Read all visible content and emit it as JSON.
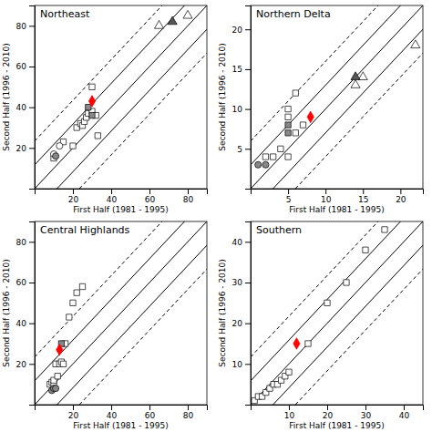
{
  "chart_data": [
    {
      "type": "scatter",
      "title": "Northeast",
      "xlabel": "First Half (1981 - 1995)",
      "ylabel": "Second Half (1996 - 2010)",
      "xlim": [
        0,
        90
      ],
      "ylim": [
        0,
        90
      ],
      "xticks": [
        20,
        40,
        60,
        80
      ],
      "yticks": [
        20,
        40,
        60,
        80
      ],
      "series": [
        {
          "type": "line",
          "line_style": "dashed",
          "color": "#000000",
          "x": [
            0,
            66.6
          ],
          "values": [
            23.4,
            90
          ]
        },
        {
          "type": "line",
          "line_style": "dashed",
          "color": "#000000",
          "x": [
            23.4,
            90
          ],
          "values": [
            0,
            66.6
          ]
        },
        {
          "type": "line",
          "line_style": "solid",
          "color": "#000000",
          "x": [
            0,
            78.3
          ],
          "values": [
            11.7,
            90
          ]
        },
        {
          "type": "line",
          "line_style": "solid",
          "color": "#000000",
          "x": [
            11.7,
            90
          ],
          "values": [
            0,
            78.3
          ]
        },
        {
          "type": "line",
          "line_style": "solid",
          "color": "#000000",
          "x": [
            0,
            90
          ],
          "values": [
            0,
            90
          ]
        },
        {
          "type": "scatter",
          "marker": "square",
          "color": "#ffffff",
          "x": [
            10,
            15,
            20,
            22,
            24,
            25,
            26,
            27,
            28,
            30,
            30,
            32,
            33
          ],
          "values": [
            15,
            23,
            21,
            30,
            32,
            31,
            33,
            35,
            37,
            38,
            50,
            36,
            26
          ]
        },
        {
          "type": "scatter",
          "marker": "square",
          "color": "#888888",
          "x": [
            28,
            30
          ],
          "values": [
            40,
            36
          ]
        },
        {
          "type": "scatter",
          "marker": "circle",
          "color": "#ffffff",
          "x": [
            10,
            13
          ],
          "values": [
            17,
            21
          ]
        },
        {
          "type": "scatter",
          "marker": "circle",
          "color": "#888888",
          "x": [
            11
          ],
          "values": [
            16
          ]
        },
        {
          "type": "scatter",
          "marker": "triangle",
          "color": "#ffffff",
          "x": [
            65,
            80
          ],
          "values": [
            80,
            85
          ]
        },
        {
          "type": "scatter",
          "marker": "triangle",
          "color": "#555555",
          "x": [
            72
          ],
          "values": [
            82
          ]
        },
        {
          "type": "scatter",
          "marker": "diamond",
          "color": "#ff0000",
          "x": [
            30
          ],
          "values": [
            43
          ]
        }
      ]
    },
    {
      "type": "scatter",
      "title": "Northern Delta",
      "xlabel": "First Half (1981 - 1995)",
      "ylabel": "Second Half (1996 - 2010)",
      "xlim": [
        0,
        23
      ],
      "ylim": [
        0,
        23
      ],
      "xticks": [
        5,
        10,
        15,
        20
      ],
      "yticks": [
        5,
        10,
        15,
        20
      ],
      "series": [
        {
          "type": "line",
          "line_style": "dashed",
          "color": "#000000",
          "x": [
            0,
            17.02
          ],
          "values": [
            5.98,
            23
          ]
        },
        {
          "type": "line",
          "line_style": "dashed",
          "color": "#000000",
          "x": [
            5.98,
            23
          ],
          "values": [
            0,
            17.02
          ]
        },
        {
          "type": "line",
          "line_style": "solid",
          "color": "#000000",
          "x": [
            0,
            20.01
          ],
          "values": [
            2.99,
            23
          ]
        },
        {
          "type": "line",
          "line_style": "solid",
          "color": "#000000",
          "x": [
            2.99,
            23
          ],
          "values": [
            0,
            20.01
          ]
        },
        {
          "type": "line",
          "line_style": "solid",
          "color": "#000000",
          "x": [
            0,
            23
          ],
          "values": [
            0,
            23
          ]
        },
        {
          "type": "scatter",
          "marker": "square",
          "color": "#ffffff",
          "x": [
            2,
            3,
            4,
            5,
            5,
            5,
            6,
            6,
            7
          ],
          "values": [
            4,
            4,
            5,
            4,
            9,
            10,
            7,
            12,
            8
          ]
        },
        {
          "type": "scatter",
          "marker": "square",
          "color": "#888888",
          "x": [
            5,
            5
          ],
          "values": [
            7,
            8
          ]
        },
        {
          "type": "scatter",
          "marker": "circle",
          "color": "#888888",
          "x": [
            1,
            2
          ],
          "values": [
            3,
            3
          ]
        },
        {
          "type": "scatter",
          "marker": "triangle",
          "color": "#ffffff",
          "x": [
            14,
            15,
            22
          ],
          "values": [
            13,
            14,
            18
          ]
        },
        {
          "type": "scatter",
          "marker": "triangle",
          "color": "#555555",
          "x": [
            14
          ],
          "values": [
            14
          ]
        },
        {
          "type": "scatter",
          "marker": "diamond",
          "color": "#ff0000",
          "x": [
            8
          ],
          "values": [
            9
          ]
        }
      ]
    },
    {
      "type": "scatter",
      "title": "Central Highlands",
      "xlabel": "First Half (1981 - 1995)",
      "ylabel": "Second Half (1996 - 2010)",
      "xlim": [
        0,
        90
      ],
      "ylim": [
        0,
        90
      ],
      "xticks": [
        20,
        40,
        60,
        80
      ],
      "yticks": [
        20,
        40,
        60,
        80
      ],
      "series": [
        {
          "type": "line",
          "line_style": "dashed",
          "color": "#000000",
          "x": [
            0,
            66.6
          ],
          "values": [
            23.4,
            90
          ]
        },
        {
          "type": "line",
          "line_style": "dashed",
          "color": "#000000",
          "x": [
            23.4,
            90
          ],
          "values": [
            0,
            66.6
          ]
        },
        {
          "type": "line",
          "line_style": "solid",
          "color": "#000000",
          "x": [
            0,
            78.3
          ],
          "values": [
            11.7,
            90
          ]
        },
        {
          "type": "line",
          "line_style": "solid",
          "color": "#000000",
          "x": [
            11.7,
            90
          ],
          "values": [
            0,
            78.3
          ]
        },
        {
          "type": "line",
          "line_style": "solid",
          "color": "#000000",
          "x": [
            0,
            90
          ],
          "values": [
            0,
            90
          ]
        },
        {
          "type": "scatter",
          "marker": "square",
          "color": "#ffffff",
          "x": [
            8,
            9,
            10,
            10,
            11,
            12,
            13,
            14,
            15,
            16,
            18,
            20,
            22,
            25
          ],
          "values": [
            10,
            11,
            10,
            12,
            20,
            14,
            20,
            21,
            20,
            30,
            43,
            50,
            55,
            58
          ]
        },
        {
          "type": "scatter",
          "marker": "square",
          "color": "#888888",
          "x": [
            14
          ],
          "values": [
            30
          ]
        },
        {
          "type": "scatter",
          "marker": "circle",
          "color": "#888888",
          "x": [
            9,
            10,
            11
          ],
          "values": [
            7,
            8,
            8
          ]
        },
        {
          "type": "scatter",
          "marker": "diamond",
          "color": "#ff0000",
          "x": [
            13
          ],
          "values": [
            27
          ]
        }
      ]
    },
    {
      "type": "scatter",
      "title": "Southern",
      "xlabel": "First Half (1981 - 1995)",
      "ylabel": "Second Half (1996 - 2010)",
      "xlim": [
        0,
        45
      ],
      "ylim": [
        0,
        45
      ],
      "xticks": [
        10,
        20,
        30,
        40
      ],
      "yticks": [
        10,
        20,
        30,
        40
      ],
      "series": [
        {
          "type": "line",
          "line_style": "dashed",
          "color": "#000000",
          "x": [
            0,
            33.3
          ],
          "values": [
            11.7,
            45
          ]
        },
        {
          "type": "line",
          "line_style": "dashed",
          "color": "#000000",
          "x": [
            11.7,
            45
          ],
          "values": [
            0,
            33.3
          ]
        },
        {
          "type": "line",
          "line_style": "solid",
          "color": "#000000",
          "x": [
            0,
            39.15
          ],
          "values": [
            5.85,
            45
          ]
        },
        {
          "type": "line",
          "line_style": "solid",
          "color": "#000000",
          "x": [
            5.85,
            45
          ],
          "values": [
            0,
            39.15
          ]
        },
        {
          "type": "line",
          "line_style": "solid",
          "color": "#000000",
          "x": [
            0,
            45
          ],
          "values": [
            0,
            45
          ]
        },
        {
          "type": "scatter",
          "marker": "square",
          "color": "#ffffff",
          "x": [
            1,
            2,
            3,
            4,
            5,
            6,
            7,
            8,
            9,
            10,
            15,
            20,
            25,
            30,
            35
          ],
          "values": [
            1,
            2,
            2,
            3,
            4,
            5,
            5,
            6,
            7,
            8,
            15,
            25,
            30,
            38,
            43
          ]
        },
        {
          "type": "scatter",
          "marker": "diamond",
          "color": "#ff0000",
          "x": [
            12
          ],
          "values": [
            15
          ]
        }
      ]
    }
  ]
}
